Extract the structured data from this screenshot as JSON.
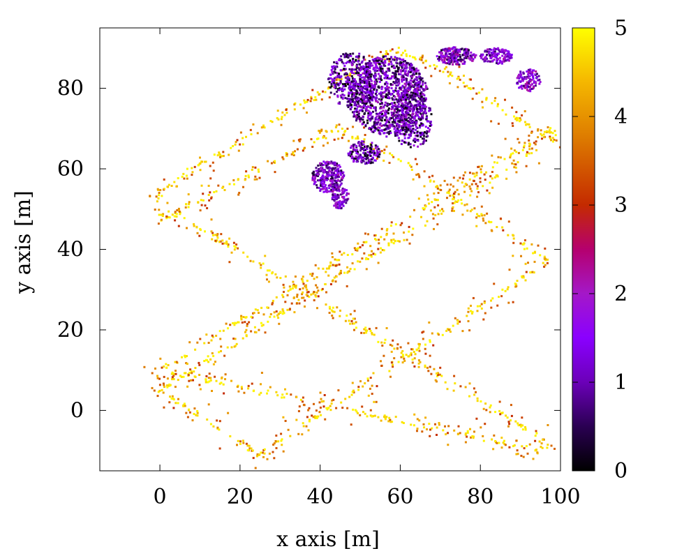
{
  "chart_data": {
    "type": "scatter",
    "title": "",
    "xlabel": "x axis [m]",
    "ylabel": "y axis [m]",
    "xlim": [
      -15,
      100
    ],
    "ylim": [
      -15,
      95
    ],
    "xticks": [
      0,
      20,
      40,
      60,
      80,
      100
    ],
    "yticks": [
      0,
      20,
      40,
      60,
      80
    ],
    "grid": false,
    "colorbar": {
      "range": [
        0,
        5
      ],
      "ticks": [
        0,
        1,
        2,
        3,
        4,
        5
      ],
      "palette": [
        "#000000",
        "#2a0052",
        "#6b00b8",
        "#8a00ff",
        "#a418c8",
        "#b5006e",
        "#c42a00",
        "#dd7a00",
        "#f5b800",
        "#ffff00"
      ]
    },
    "path_vertices": [
      {
        "x": 95,
        "y": 65,
        "c": 4.3
      },
      {
        "x": 0,
        "y": 5,
        "c": 4.6
      },
      {
        "x": 25,
        "y": -11,
        "c": 4.5
      },
      {
        "x": 97,
        "y": 37,
        "c": 4.2
      },
      {
        "x": 60,
        "y": 62,
        "c": 3.8
      },
      {
        "x": 45,
        "y": 70,
        "c": 3.6
      },
      {
        "x": 0,
        "y": 47,
        "c": 4.6
      },
      {
        "x": 0,
        "y": 55,
        "c": 4.5
      },
      {
        "x": 47,
        "y": 83,
        "c": 4.2
      },
      {
        "x": 58,
        "y": 90,
        "c": 4.7
      },
      {
        "x": 70,
        "y": 85,
        "c": 4.3
      },
      {
        "x": 99,
        "y": 66,
        "c": 4.1
      },
      {
        "x": 98,
        "y": 70,
        "c": 4.1
      },
      {
        "x": 0,
        "y": 10,
        "c": 4.6
      },
      {
        "x": 95,
        "y": -10,
        "c": 4.5
      },
      {
        "x": 97,
        "y": -8,
        "c": 4.4
      },
      {
        "x": 35,
        "y": 30,
        "c": 4.4
      },
      {
        "x": 2,
        "y": 50,
        "c": 4.5
      }
    ],
    "clusters": [
      {
        "cx": 57,
        "cy": 78,
        "rx": 10,
        "ry": 10,
        "count": 1100,
        "cmin": 0.0,
        "cmax": 2.2
      },
      {
        "cx": 48,
        "cy": 82,
        "rx": 6,
        "ry": 7,
        "count": 350,
        "cmin": 0.0,
        "cmax": 2.0
      },
      {
        "cx": 63,
        "cy": 72,
        "rx": 5,
        "ry": 7,
        "count": 300,
        "cmin": 0.0,
        "cmax": 2.0
      },
      {
        "cx": 42,
        "cy": 58,
        "rx": 4,
        "ry": 4,
        "count": 280,
        "cmin": 0.3,
        "cmax": 2.2
      },
      {
        "cx": 45,
        "cy": 53,
        "rx": 2.2,
        "ry": 3,
        "count": 90,
        "cmin": 0.5,
        "cmax": 2.2
      },
      {
        "cx": 51,
        "cy": 64,
        "rx": 4,
        "ry": 3,
        "count": 160,
        "cmin": 0.0,
        "cmax": 2.0
      },
      {
        "cx": 74,
        "cy": 88,
        "rx": 5,
        "ry": 2.2,
        "count": 200,
        "cmin": 0.2,
        "cmax": 2.4
      },
      {
        "cx": 84,
        "cy": 88,
        "rx": 4,
        "ry": 2,
        "count": 130,
        "cmin": 0.5,
        "cmax": 2.2
      },
      {
        "cx": 92,
        "cy": 82,
        "rx": 3,
        "ry": 3,
        "count": 110,
        "cmin": 0.6,
        "cmax": 2.3
      }
    ]
  }
}
